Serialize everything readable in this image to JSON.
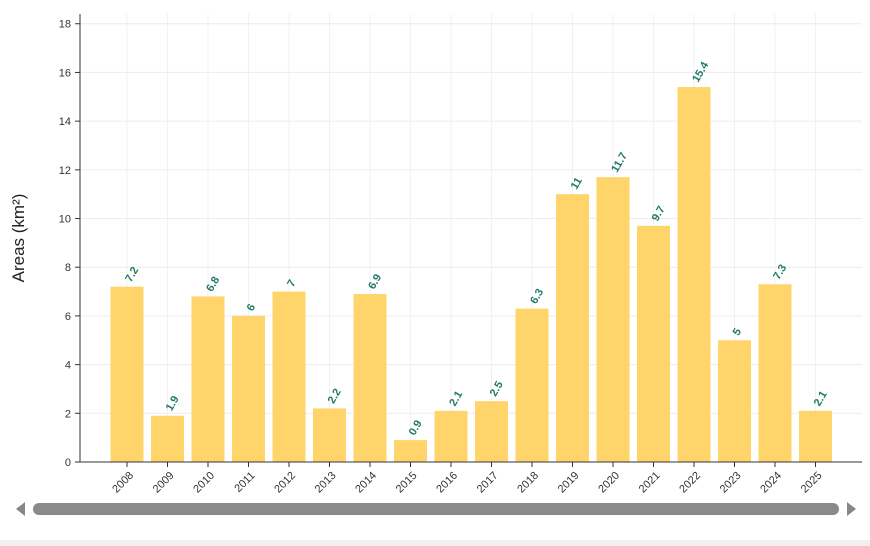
{
  "chart_data": {
    "type": "bar",
    "categories": [
      "2008",
      "2009",
      "2010",
      "2011",
      "2012",
      "2013",
      "2014",
      "2015",
      "2016",
      "2017",
      "2018",
      "2019",
      "2020",
      "2021",
      "2022",
      "2023",
      "2024",
      "2025"
    ],
    "values": [
      7.2,
      1.9,
      6.8,
      6,
      7,
      2.2,
      6.9,
      0.9,
      2.1,
      2.5,
      6.3,
      11,
      11.7,
      9.7,
      15.4,
      5,
      7.3,
      2.1
    ],
    "value_labels": [
      "7.2",
      "1.9",
      "6.8",
      "6",
      "7",
      "2.2",
      "6.9",
      "0.9",
      "2.1",
      "2.5",
      "6.3",
      "11",
      "11.7",
      "9.7",
      "15.4",
      "5",
      "7.3",
      "2.1"
    ],
    "ylabel": "Areas (km²)",
    "xlabel": "",
    "ylim": [
      0,
      18.4
    ],
    "yticks": [
      0,
      2,
      4,
      6,
      8,
      10,
      12,
      14,
      16,
      18
    ],
    "grid": true,
    "bar_color": "#ffd56b",
    "label_color": "#1f7a6a"
  }
}
